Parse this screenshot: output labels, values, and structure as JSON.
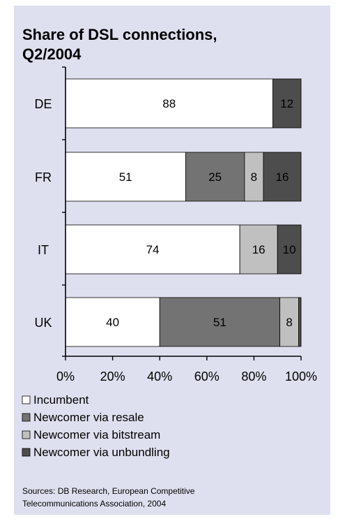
{
  "chart_data": {
    "type": "bar",
    "orientation": "horizontal",
    "stacked": true,
    "title_lines": [
      "Share of DSL connections,",
      "Q2/2004"
    ],
    "categories": [
      "DE",
      "FR",
      "IT",
      "UK"
    ],
    "series": [
      {
        "name": "Incumbent",
        "color": "#ffffff",
        "values": [
          88,
          51,
          74,
          40
        ],
        "labels": [
          "88",
          "51",
          "74",
          "40"
        ]
      },
      {
        "name": "Newcomer via resale",
        "color": "#737373",
        "values": [
          0,
          25,
          0,
          51
        ],
        "labels": [
          "",
          "25",
          "",
          "51"
        ]
      },
      {
        "name": "Newcomer via bitstream",
        "color": "#c0c0c0",
        "values": [
          0,
          8,
          16,
          8
        ],
        "labels": [
          "",
          "8",
          "16",
          "8"
        ]
      },
      {
        "name": "Newcomer via unbundling",
        "color": "#4d4d4d",
        "values": [
          12,
          16,
          10,
          1
        ],
        "labels": [
          "12",
          "16",
          "10",
          ""
        ]
      }
    ],
    "xlim": [
      0,
      100
    ],
    "x_ticks": [
      "0%",
      "20%",
      "40%",
      "60%",
      "80%",
      "100%"
    ],
    "legend_position": "bottom",
    "source_lines": [
      "Sources: DB Research, European Competitive",
      "Telecommunications Association, 2004"
    ]
  }
}
